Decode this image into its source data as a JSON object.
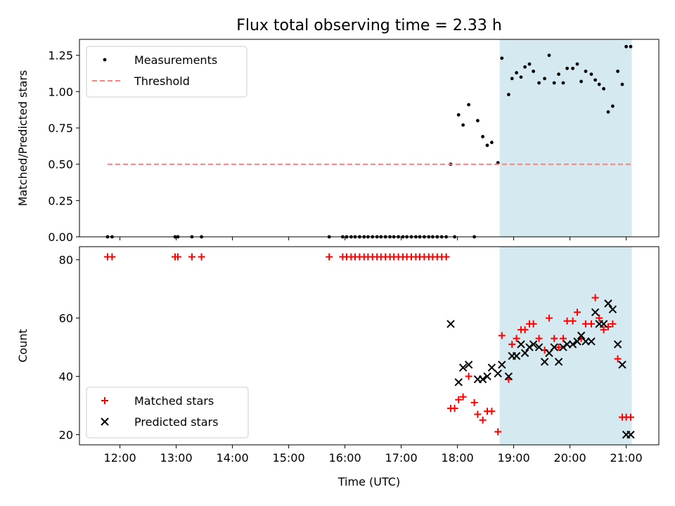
{
  "title": "Flux total observing time = 2.33 h",
  "chart_data": [
    {
      "type": "scatter",
      "ylabel": "Matched/Predicted stars",
      "xlim": [
        11.28,
        21.58
      ],
      "ylim": [
        0.0,
        1.36
      ],
      "xticks": [
        {
          "value": 12,
          "label": "12:00"
        },
        {
          "value": 13,
          "label": "13:00"
        },
        {
          "value": 14,
          "label": "14:00"
        },
        {
          "value": 15,
          "label": "15:00"
        },
        {
          "value": 16,
          "label": "16:00"
        },
        {
          "value": 17,
          "label": "17:00"
        },
        {
          "value": 18,
          "label": "18:00"
        },
        {
          "value": 19,
          "label": "19:00"
        },
        {
          "value": 20,
          "label": "20:00"
        },
        {
          "value": 21,
          "label": "21:00"
        }
      ],
      "yticks": [
        {
          "value": 0.0,
          "label": "0.00"
        },
        {
          "value": 0.25,
          "label": "0.25"
        },
        {
          "value": 0.5,
          "label": "0.50"
        },
        {
          "value": 0.75,
          "label": "0.75"
        },
        {
          "value": 1.0,
          "label": "1.00"
        },
        {
          "value": 1.25,
          "label": "1.25"
        }
      ],
      "shaded_span": {
        "x0": 18.75,
        "x1": 21.1,
        "color": "#d4eaf0"
      },
      "legend": {
        "position": "upper-left",
        "entries": [
          {
            "label": "Measurements",
            "marker": "dot",
            "color": "#000000"
          },
          {
            "label": "Threshold",
            "marker": "dashed-line",
            "color": "#ff7f7f"
          }
        ]
      },
      "series": [
        {
          "name": "Measurements",
          "marker": "dot",
          "color": "#000000",
          "x": [
            11.78,
            11.86,
            12.98,
            13.03,
            13.28,
            13.45,
            15.72,
            15.96,
            16.03,
            16.11,
            16.18,
            16.26,
            16.34,
            16.41,
            16.49,
            16.57,
            16.64,
            16.72,
            16.8,
            16.87,
            16.95,
            17.03,
            17.1,
            17.18,
            17.26,
            17.33,
            17.41,
            17.49,
            17.56,
            17.64,
            17.72,
            17.8,
            17.88,
            17.95,
            18.02,
            18.1,
            18.2,
            18.3,
            18.36,
            18.45,
            18.53,
            18.61,
            18.72,
            18.79,
            18.91,
            18.97,
            19.05,
            19.13,
            19.2,
            19.28,
            19.35,
            19.45,
            19.55,
            19.63,
            19.72,
            19.8,
            19.88,
            19.95,
            20.05,
            20.13,
            20.2,
            20.28,
            20.38,
            20.45,
            20.52,
            20.6,
            20.68,
            20.76,
            20.85,
            20.93,
            21.0,
            21.08
          ],
          "y": [
            0.0,
            0.0,
            0.0,
            0.0,
            0.0,
            0.0,
            0.0,
            0.0,
            0.0,
            0.0,
            0.0,
            0.0,
            0.0,
            0.0,
            0.0,
            0.0,
            0.0,
            0.0,
            0.0,
            0.0,
            0.0,
            0.0,
            0.0,
            0.0,
            0.0,
            0.0,
            0.0,
            0.0,
            0.0,
            0.0,
            0.0,
            0.0,
            0.5,
            0.0,
            0.84,
            0.77,
            0.91,
            0.0,
            0.8,
            0.69,
            0.63,
            0.65,
            0.51,
            1.23,
            0.98,
            1.09,
            1.13,
            1.1,
            1.17,
            1.19,
            1.14,
            1.06,
            1.09,
            1.25,
            1.06,
            1.12,
            1.06,
            1.16,
            1.16,
            1.19,
            1.07,
            1.14,
            1.12,
            1.08,
            1.05,
            1.02,
            0.86,
            0.9,
            1.14,
            1.05,
            1.31,
            1.31
          ]
        },
        {
          "name": "Threshold",
          "marker": "dashed-line",
          "color": "#ff7f7f",
          "x": [
            11.78,
            21.1
          ],
          "y": [
            0.5,
            0.5
          ]
        }
      ]
    },
    {
      "type": "scatter",
      "xlabel": "Time (UTC)",
      "ylabel": "Count",
      "xlim": [
        11.28,
        21.58
      ],
      "ylim": [
        16.5,
        84.5
      ],
      "xticks": [
        {
          "value": 12,
          "label": "12:00"
        },
        {
          "value": 13,
          "label": "13:00"
        },
        {
          "value": 14,
          "label": "14:00"
        },
        {
          "value": 15,
          "label": "15:00"
        },
        {
          "value": 16,
          "label": "16:00"
        },
        {
          "value": 17,
          "label": "17:00"
        },
        {
          "value": 18,
          "label": "18:00"
        },
        {
          "value": 19,
          "label": "19:00"
        },
        {
          "value": 20,
          "label": "20:00"
        },
        {
          "value": 21,
          "label": "21:00"
        }
      ],
      "yticks": [
        {
          "value": 20,
          "label": "20"
        },
        {
          "value": 40,
          "label": "40"
        },
        {
          "value": 60,
          "label": "60"
        },
        {
          "value": 80,
          "label": "80"
        }
      ],
      "shaded_span": {
        "x0": 18.75,
        "x1": 21.1,
        "color": "#d4eaf0"
      },
      "legend": {
        "position": "lower-left",
        "entries": [
          {
            "label": "Matched stars",
            "marker": "plus",
            "color": "#ff0000"
          },
          {
            "label": "Predicted stars",
            "marker": "x",
            "color": "#000000"
          }
        ]
      },
      "series": [
        {
          "name": "Matched stars",
          "marker": "plus",
          "color": "#ff0000",
          "x": [
            11.78,
            11.86,
            12.98,
            13.03,
            13.28,
            13.45,
            15.72,
            15.96,
            16.03,
            16.11,
            16.18,
            16.26,
            16.34,
            16.41,
            16.49,
            16.57,
            16.64,
            16.72,
            16.8,
            16.87,
            16.95,
            17.03,
            17.1,
            17.18,
            17.26,
            17.33,
            17.41,
            17.49,
            17.56,
            17.64,
            17.72,
            17.8,
            17.88,
            17.95,
            18.02,
            18.1,
            18.2,
            18.3,
            18.36,
            18.45,
            18.53,
            18.61,
            18.72,
            18.79,
            18.91,
            18.97,
            19.05,
            19.13,
            19.2,
            19.28,
            19.35,
            19.45,
            19.55,
            19.63,
            19.72,
            19.8,
            19.88,
            19.95,
            20.05,
            20.13,
            20.2,
            20.28,
            20.38,
            20.45,
            20.52,
            20.6,
            20.68,
            20.76,
            20.85,
            20.93,
            21.0,
            21.08
          ],
          "y": [
            81,
            81,
            81,
            81,
            81,
            81,
            81,
            81,
            81,
            81,
            81,
            81,
            81,
            81,
            81,
            81,
            81,
            81,
            81,
            81,
            81,
            81,
            81,
            81,
            81,
            81,
            81,
            81,
            81,
            81,
            81,
            81,
            29,
            29,
            32,
            33,
            40,
            31,
            27,
            25,
            28,
            28,
            21,
            54,
            39,
            51,
            53,
            56,
            56,
            58,
            58,
            53,
            49,
            60,
            53,
            50,
            53,
            59,
            59,
            62,
            53,
            58,
            58,
            67,
            60,
            56,
            57,
            58,
            46,
            26,
            26,
            26
          ]
        },
        {
          "name": "Predicted stars",
          "marker": "x",
          "color": "#000000",
          "x": [
            17.88,
            18.02,
            18.1,
            18.2,
            18.36,
            18.45,
            18.53,
            18.61,
            18.72,
            18.79,
            18.91,
            18.97,
            19.05,
            19.13,
            19.2,
            19.28,
            19.35,
            19.45,
            19.55,
            19.63,
            19.72,
            19.8,
            19.88,
            19.95,
            20.05,
            20.13,
            20.2,
            20.28,
            20.38,
            20.45,
            20.52,
            20.6,
            20.68,
            20.76,
            20.85,
            20.93,
            21.0,
            21.08
          ],
          "y": [
            58,
            38,
            43,
            44,
            39,
            39,
            40,
            43,
            41,
            44,
            40,
            47,
            47,
            51,
            48,
            50,
            51,
            50,
            45,
            48,
            50,
            45,
            50,
            51,
            51,
            52,
            54,
            52,
            52,
            62,
            58,
            58,
            65,
            63,
            51,
            44,
            20,
            20
          ]
        }
      ]
    }
  ]
}
